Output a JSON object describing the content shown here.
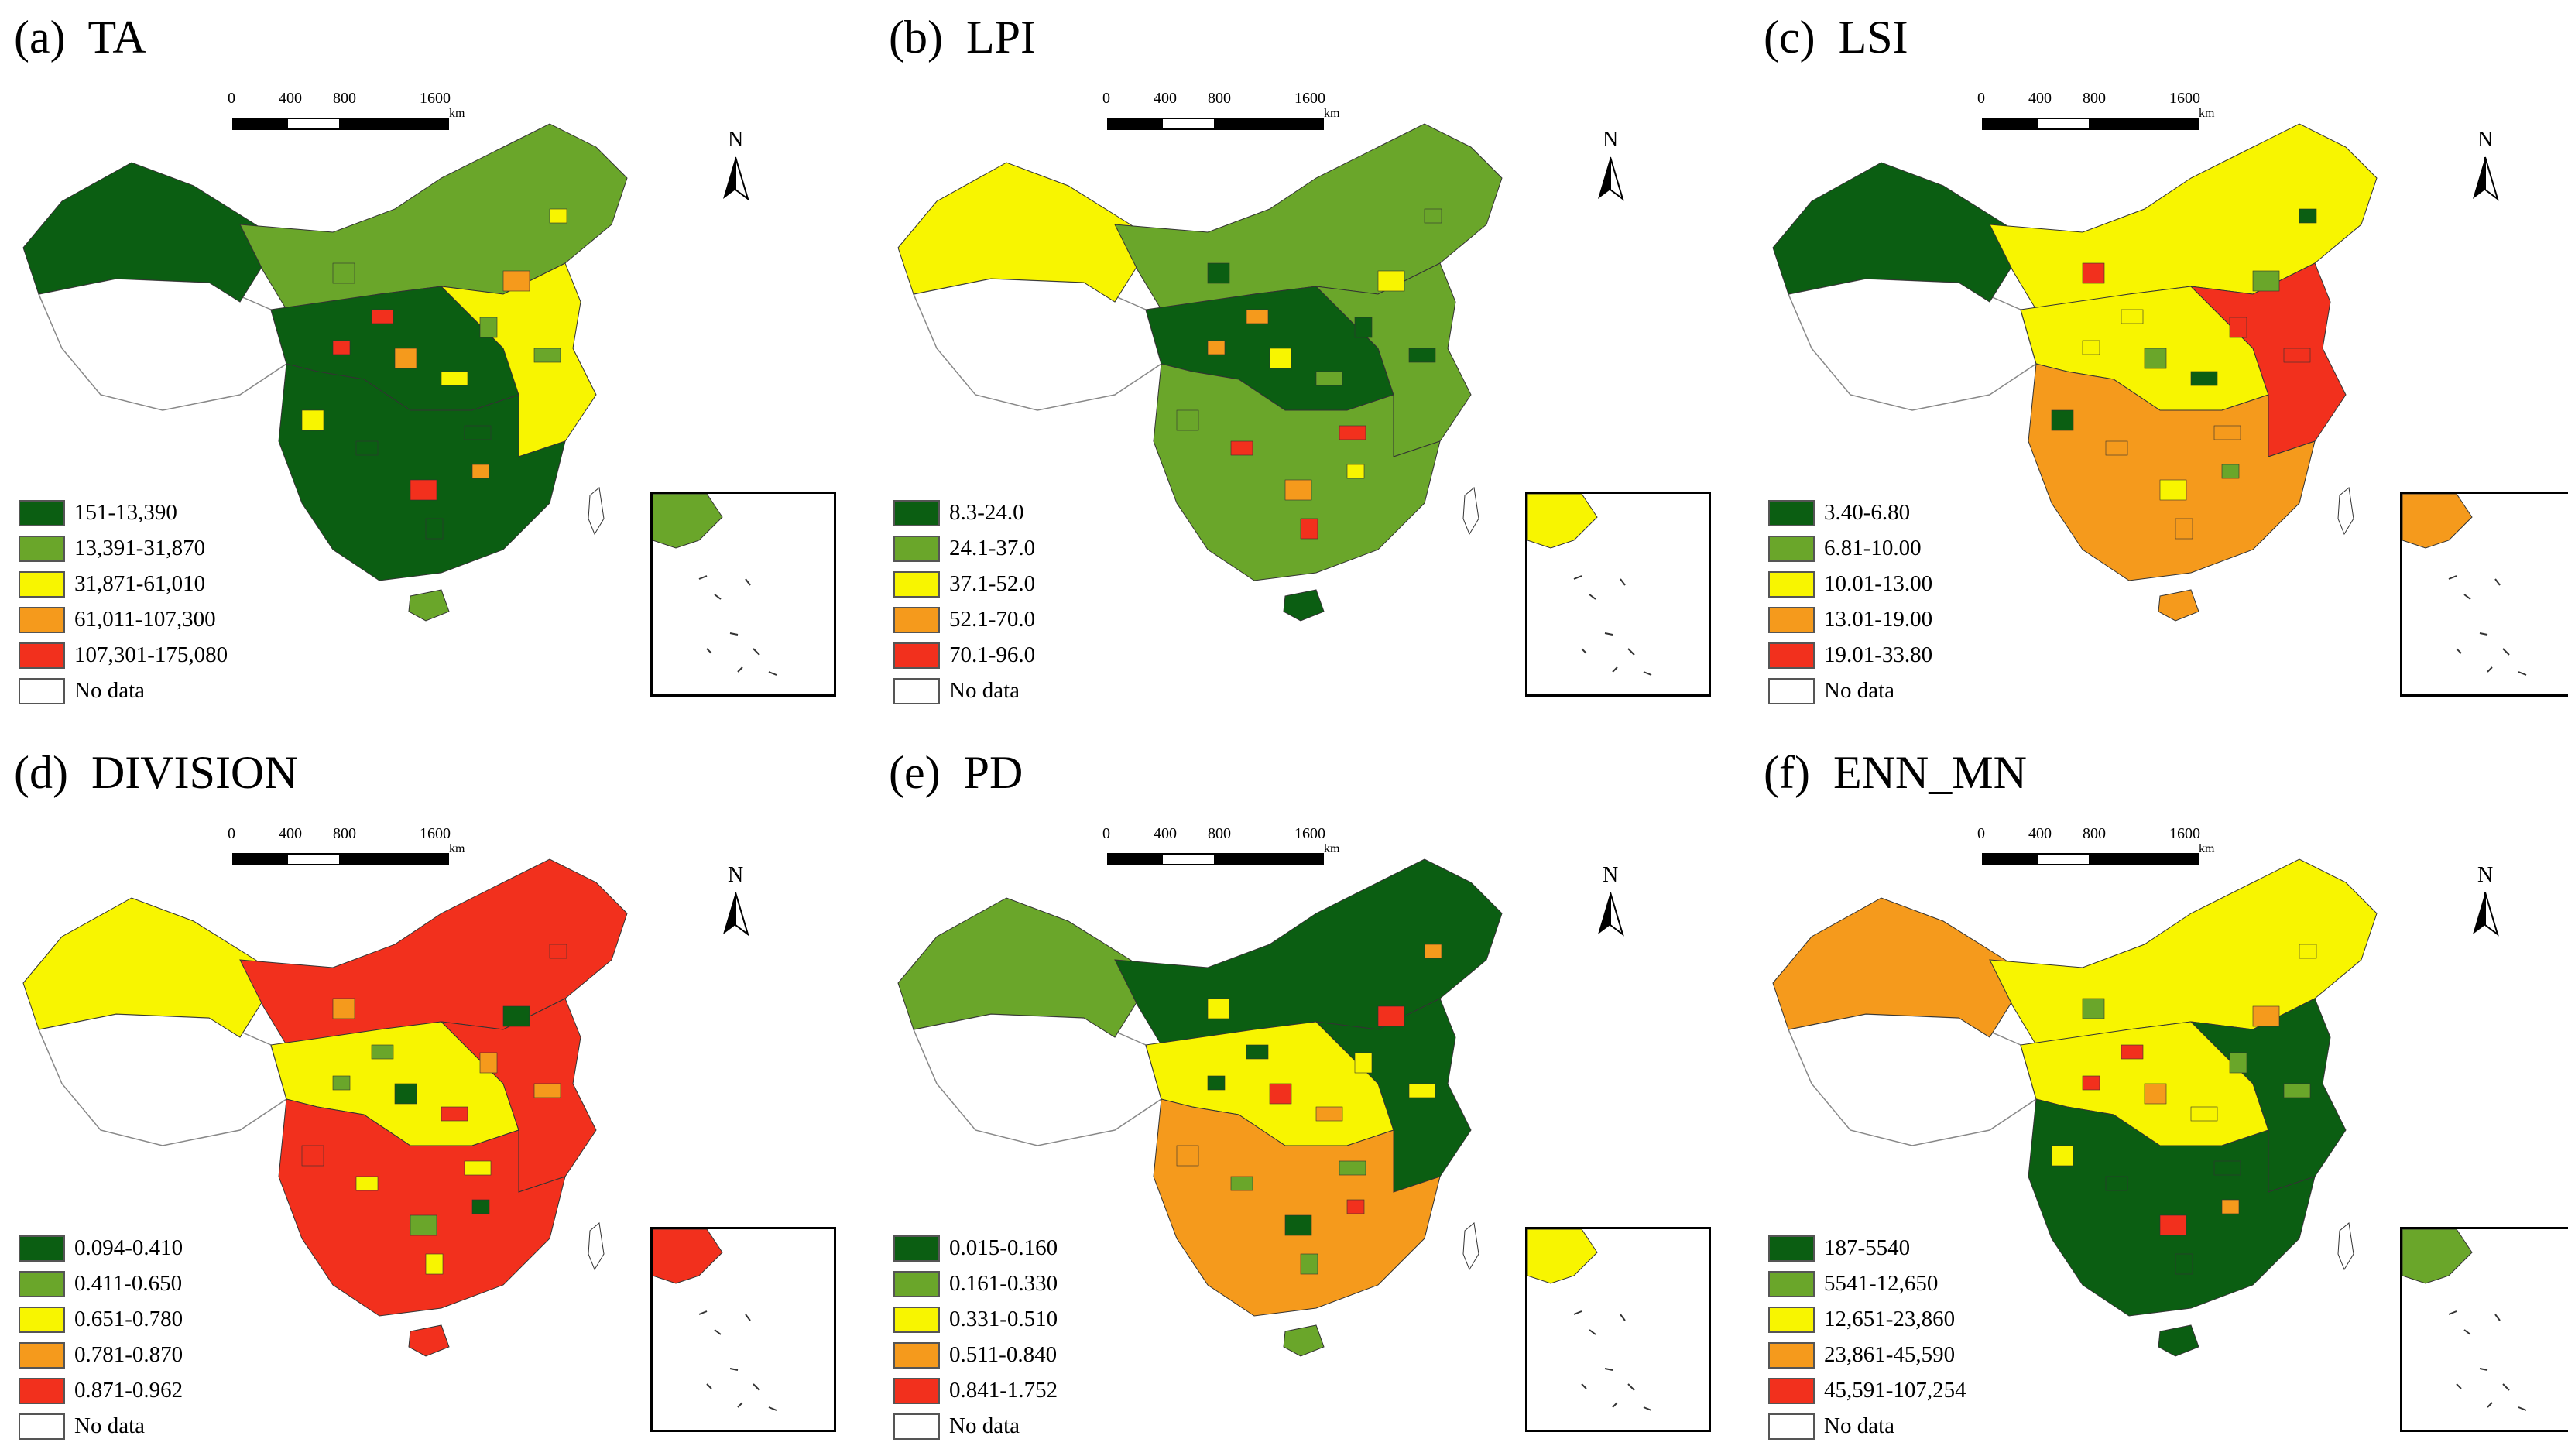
{
  "colors": {
    "c1": "#0b5e12",
    "c2": "#6aa62a",
    "c3": "#f8f500",
    "c4": "#f59a1c",
    "c5": "#f2301d",
    "nodata": "#ffffff"
  },
  "scale": {
    "ticks": [
      "0",
      "400",
      "800",
      "1600"
    ],
    "unit": "km"
  },
  "north_label": "N",
  "panels": [
    {
      "title": "(a)  TA",
      "legend": [
        "151-13,390",
        "13,391-31,870",
        "31,871-61,010",
        "61,011-107,300",
        "107,301-175,080",
        "No data"
      ]
    },
    {
      "title": "(b)  LPI",
      "legend": [
        "8.3-24.0",
        "24.1-37.0",
        "37.1-52.0",
        "52.1-70.0",
        "70.1-96.0",
        "No data"
      ]
    },
    {
      "title": "(c)  LSI",
      "legend": [
        "3.40-6.80",
        "6.81-10.00",
        "10.01-13.00",
        "13.01-19.00",
        "19.01-33.80",
        "No data"
      ]
    },
    {
      "title": "(d)  DIVISION",
      "legend": [
        "0.094-0.410",
        "0.411-0.650",
        "0.651-0.780",
        "0.781-0.870",
        "0.871-0.962",
        "No data"
      ]
    },
    {
      "title": "(e)  PD",
      "legend": [
        "0.015-0.160",
        "0.161-0.330",
        "0.331-0.510",
        "0.511-0.840",
        "0.841-1.752",
        "No data"
      ]
    },
    {
      "title": "(f)  ENN_MN",
      "legend": [
        "187-5540",
        "5541-12,650",
        "12,651-23,860",
        "23,861-45,590",
        "45,591-107,254",
        "No data"
      ]
    }
  ]
}
